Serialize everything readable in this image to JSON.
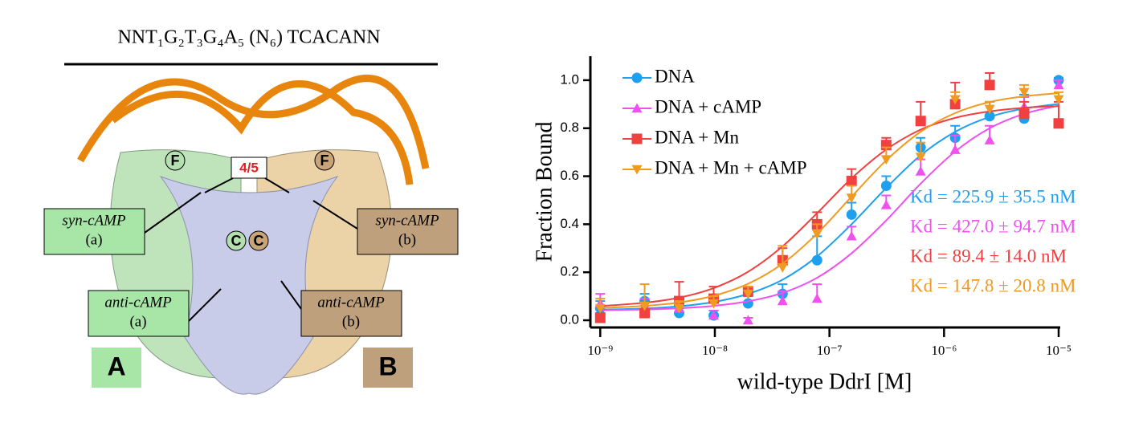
{
  "structure_panel": {
    "sequence": "NNT₁G₂T₃G₄A₅ (N₆) TCACANN",
    "site_label": "4/5",
    "helix_f_left": "F",
    "helix_f_right": "F",
    "helix_c_left": "C",
    "helix_c_right": "C",
    "syn_a": [
      "syn-cAMP",
      "(a)"
    ],
    "syn_b": [
      "syn-cAMP",
      "(b)"
    ],
    "anti_a": [
      "anti-cAMP",
      "(a)"
    ],
    "anti_b": [
      "anti-cAMP",
      "(b)"
    ],
    "chain_a": "A",
    "chain_b": "B"
  },
  "chart_data": {
    "type": "scatter",
    "log_x": true,
    "xlabel": "wild-type DdrI [M]",
    "ylabel": "Fraction Bound",
    "x": [
      1e-09,
      2.44e-09,
      4.88e-09,
      9.77e-09,
      1.95e-08,
      3.9e-08,
      7.8e-08,
      1.56e-07,
      3.13e-07,
      6.25e-07,
      1.25e-06,
      2.5e-06,
      5e-06,
      1e-05
    ],
    "xlim": [
      8.2e-10,
      1e-05
    ],
    "xticks": [
      {
        "value": 1e-09,
        "label": "10⁻⁹"
      },
      {
        "value": 1e-08,
        "label": "10⁻⁸"
      },
      {
        "value": 1e-07,
        "label": "10⁻⁷"
      },
      {
        "value": 1e-06,
        "label": "10⁻⁶"
      },
      {
        "value": 1e-05,
        "label": "10⁻⁵"
      }
    ],
    "ylim": [
      -0.03,
      1.1
    ],
    "yticks": [
      {
        "value": 0,
        "label": "0.0"
      },
      0.2,
      0.4,
      0.6,
      0.8,
      {
        "value": 1,
        "label": "1.0"
      }
    ],
    "legend": "upper left",
    "series": [
      {
        "name": "DNA",
        "color": "#1ea0f0",
        "marker": "circle",
        "values": [
          0.05,
          0.08,
          0.03,
          0.02,
          0.07,
          0.11,
          0.25,
          0.44,
          0.56,
          0.72,
          0.76,
          0.85,
          0.84,
          1.0
        ],
        "errors": [
          0.03,
          0.03,
          0.02,
          0.02,
          0.03,
          0.04,
          0.1,
          0.05,
          0.04,
          0.04,
          0.05,
          0.06,
          0.1,
          0.01
        ],
        "fit_values": [
          0.044,
          0.049,
          0.058,
          0.076,
          0.11,
          0.169,
          0.266,
          0.4,
          0.551,
          0.687,
          0.785,
          0.847,
          0.882,
          0.901
        ],
        "annotation": "Kd = 225.9 ± 35.5 nM"
      },
      {
        "name": "DNA + cAMP",
        "color": "#f050f0",
        "marker": "triangle-up",
        "values": [
          0.07,
          0.06,
          0.05,
          0.02,
          0.0,
          0.08,
          0.09,
          0.35,
          0.48,
          0.62,
          0.71,
          0.75,
          0.89,
          0.98
        ],
        "errors": [
          0.04,
          0.03,
          0.03,
          0.02,
          0.01,
          0.04,
          0.06,
          0.04,
          0.04,
          0.05,
          0.06,
          0.06,
          0.04,
          0.02
        ],
        "fit_values": [
          0.042,
          0.045,
          0.05,
          0.06,
          0.079,
          0.114,
          0.177,
          0.279,
          0.416,
          0.569,
          0.703,
          0.8,
          0.86,
          0.894
        ],
        "annotation": "Kd = 427.0 ± 94.7 nM"
      },
      {
        "name": "DNA + Mn",
        "color": "#f04040",
        "marker": "square",
        "values": [
          0.01,
          0.03,
          0.08,
          0.09,
          0.12,
          0.25,
          0.4,
          0.58,
          0.73,
          0.83,
          0.9,
          0.98,
          0.86,
          0.82
        ],
        "errors": [
          0.02,
          0.03,
          0.08,
          0.05,
          0.02,
          0.05,
          0.05,
          0.05,
          0.03,
          0.08,
          0.09,
          0.05,
          0.05,
          0.09
        ],
        "fit_values": [
          0.059,
          0.073,
          0.094,
          0.134,
          0.202,
          0.308,
          0.446,
          0.591,
          0.711,
          0.794,
          0.843,
          0.87,
          0.885,
          0.892
        ],
        "annotation": "Kd = 89.4 ± 14.0 nM"
      },
      {
        "name": "DNA + Mn + cAMP",
        "color": "#f09a20",
        "marker": "triangle-down",
        "values": [
          0.05,
          0.06,
          0.05,
          0.07,
          0.11,
          0.22,
          0.36,
          0.51,
          0.67,
          0.68,
          0.92,
          0.88,
          0.95,
          0.92
        ],
        "errors": [
          0.04,
          0.09,
          0.03,
          0.03,
          0.03,
          0.09,
          0.04,
          0.05,
          0.05,
          0.06,
          0.03,
          0.03,
          0.03,
          0.03
        ],
        "fit_values": [
          0.051,
          0.06,
          0.074,
          0.102,
          0.152,
          0.236,
          0.361,
          0.515,
          0.666,
          0.785,
          0.863,
          0.909,
          0.933,
          0.946
        ],
        "annotation": "Kd = 147.8 ± 20.8 nM"
      }
    ]
  }
}
